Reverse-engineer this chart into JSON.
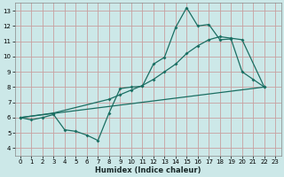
{
  "xlabel": "Humidex (Indice chaleur)",
  "xlim": [
    -0.5,
    23.5
  ],
  "ylim": [
    3.5,
    13.5
  ],
  "xticks": [
    0,
    1,
    2,
    3,
    4,
    5,
    6,
    7,
    8,
    9,
    10,
    11,
    12,
    13,
    14,
    15,
    16,
    17,
    18,
    19,
    20,
    21,
    22,
    23
  ],
  "yticks": [
    4,
    5,
    6,
    7,
    8,
    9,
    10,
    11,
    12,
    13
  ],
  "bg_color": "#cce8e8",
  "grid_color": "#c8a0a0",
  "line_color": "#1a6e62",
  "line1_x": [
    0,
    1,
    2,
    3,
    4,
    5,
    6,
    7,
    8,
    9,
    10,
    11,
    12,
    13,
    14,
    15,
    16,
    17,
    18,
    19,
    20,
    21,
    22
  ],
  "line1_y": [
    6.0,
    5.85,
    6.0,
    6.2,
    5.2,
    5.1,
    4.85,
    4.5,
    6.3,
    7.9,
    8.0,
    8.05,
    9.5,
    9.95,
    11.9,
    13.2,
    12.0,
    12.1,
    11.1,
    11.15,
    9.0,
    8.5,
    8.0
  ],
  "line2_x": [
    0,
    3,
    8,
    9,
    10,
    11,
    12,
    13,
    14,
    15,
    16,
    17,
    18,
    19,
    20,
    22
  ],
  "line2_y": [
    6.0,
    6.3,
    7.2,
    7.5,
    7.8,
    8.1,
    8.5,
    9.0,
    9.5,
    10.2,
    10.7,
    11.1,
    11.3,
    11.2,
    11.1,
    8.0
  ],
  "line3_x": [
    0,
    22
  ],
  "line3_y": [
    6.0,
    8.0
  ]
}
